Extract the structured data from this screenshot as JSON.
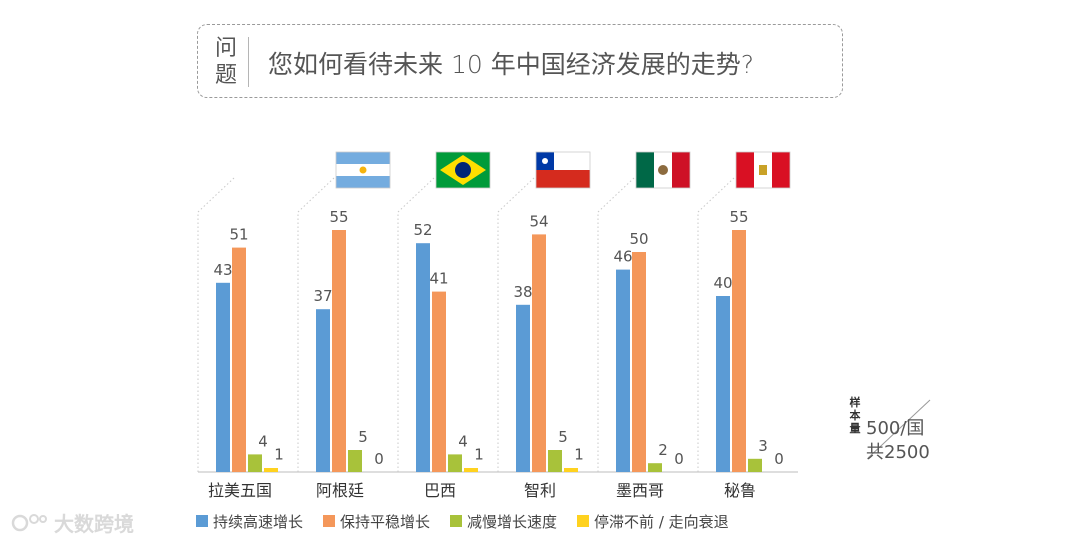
{
  "question": {
    "label": "问题",
    "text": "您如何看待未来 10 年中国经济发展的走势?"
  },
  "flags": [
    {
      "country": "阿根廷",
      "icon": "argentina-flag-icon"
    },
    {
      "country": "巴西",
      "icon": "brazil-flag-icon"
    },
    {
      "country": "智利",
      "icon": "chile-flag-icon"
    },
    {
      "country": "墨西哥",
      "icon": "mexico-flag-icon"
    },
    {
      "country": "秘鲁",
      "icon": "peru-flag-icon"
    }
  ],
  "sample": {
    "tag": "样本量",
    "line1": "500/国",
    "line2": "共2500"
  },
  "watermark": {
    "text": "大数跨境",
    "icon": "brand-logo-icon"
  },
  "chart_data": {
    "type": "bar",
    "title": "",
    "xlabel": "",
    "ylabel": "",
    "ylim": [
      0,
      60
    ],
    "categories": [
      "拉美五国",
      "阿根廷",
      "巴西",
      "智利",
      "墨西哥",
      "秘鲁"
    ],
    "series": [
      {
        "name": "持续高速增长",
        "color": "#5b9bd5",
        "values": [
          43,
          37,
          52,
          38,
          46,
          40
        ]
      },
      {
        "name": "保持平稳增长",
        "color": "#f4975a",
        "values": [
          51,
          55,
          41,
          54,
          50,
          55
        ]
      },
      {
        "name": "减慢增长速度",
        "color": "#a8c23a",
        "values": [
          4,
          5,
          4,
          5,
          2,
          3
        ]
      },
      {
        "name": "停滞不前 / 走向衰退",
        "color": "#ffd21f",
        "values": [
          1,
          0,
          1,
          1,
          0,
          0
        ]
      }
    ],
    "grid": false,
    "legend": "bottom"
  }
}
